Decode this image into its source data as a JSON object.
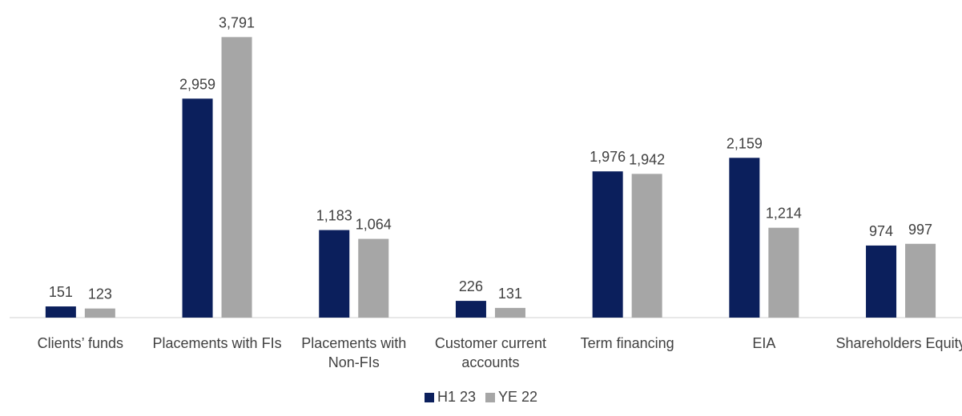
{
  "chart_data": {
    "type": "bar",
    "categories": [
      "Clients’ funds",
      "Placements with FIs",
      "Placements with Non-FIs",
      "Customer current accounts",
      "Term financing",
      "EIA",
      "Shareholders Equity"
    ],
    "series": [
      {
        "name": "H1 23",
        "color": "#0b1f5c",
        "values": [
          151,
          2959,
          1183,
          226,
          1976,
          2159,
          974
        ],
        "value_labels": [
          "151",
          "2,959",
          "1,183",
          "226",
          "1,976",
          "2,159",
          "974"
        ]
      },
      {
        "name": "YE 22",
        "color": "#a6a6a6",
        "values": [
          123,
          3791,
          1064,
          131,
          1942,
          1214,
          997
        ],
        "value_labels": [
          "123",
          "3,791",
          "1,064",
          "131",
          "1,942",
          "1,214",
          "997"
        ]
      }
    ],
    "ylim": [
      0,
      4000
    ],
    "legend": "bottom"
  }
}
